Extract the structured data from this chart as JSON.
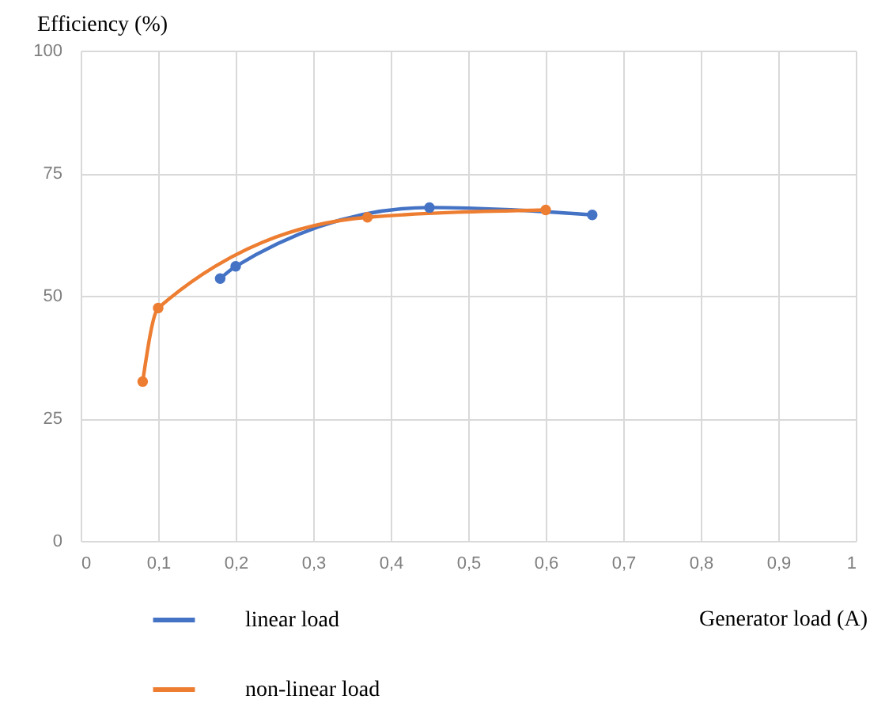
{
  "chart_data": {
    "type": "line",
    "ylabel": "Efficiency (%)",
    "xlabel": "Generator load (A)",
    "xlim": [
      0,
      1
    ],
    "xticks": [
      0,
      {
        "value": 0.1,
        "label": "0,1"
      },
      {
        "value": 0.2,
        "label": "0,2"
      },
      {
        "value": 0.3,
        "label": "0,3"
      },
      {
        "value": 0.4,
        "label": "0,4"
      },
      {
        "value": 0.5,
        "label": "0,5"
      },
      {
        "value": 0.6,
        "label": "0,6"
      },
      {
        "value": 0.7,
        "label": "0,7"
      },
      {
        "value": 0.8,
        "label": "0,8"
      },
      {
        "value": 0.9,
        "label": "0,9"
      },
      1
    ],
    "ylim": [
      0,
      100
    ],
    "yticks": [
      0,
      25,
      50,
      75,
      100
    ],
    "grid": true,
    "legend": "bottom left",
    "marker": "circle",
    "line_style": "solid",
    "series": [
      {
        "name": "linear load",
        "color": "#4472c4",
        "x": [
          0.18,
          0.2,
          0.45,
          0.66
        ],
        "values": [
          53.5,
          56,
          68,
          66.5
        ]
      },
      {
        "name": "non-linear load",
        "color": "#ed7d31",
        "x": [
          0.08,
          0.1,
          0.37,
          0.6
        ],
        "values": [
          32.5,
          47.5,
          66,
          67.5
        ]
      }
    ]
  }
}
